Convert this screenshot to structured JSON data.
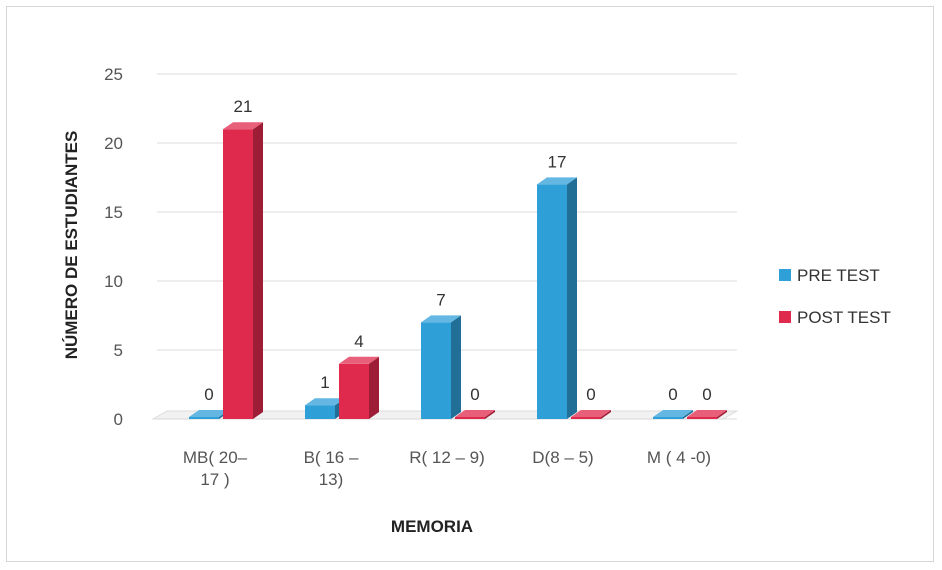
{
  "chart_data": {
    "type": "bar",
    "title": "",
    "xlabel": "MEMORIA",
    "ylabel": "NÚMERO DE ESTUDIANTES",
    "ylim": [
      0,
      25
    ],
    "yticks": [
      0,
      5,
      10,
      15,
      20,
      25
    ],
    "grid": true,
    "legend_position": "right",
    "categories": [
      [
        "MB( 20–",
        "17 )"
      ],
      [
        "B( 16 –",
        "13)"
      ],
      [
        "R( 12 – 9)"
      ],
      [
        "D(8 – 5)"
      ],
      [
        "M ( 4 -0)"
      ]
    ],
    "series": [
      {
        "name": "PRE TEST",
        "color": "#2f9fd8",
        "values": [
          0,
          1,
          7,
          17,
          0
        ]
      },
      {
        "name": "POST TEST",
        "color": "#e02a4d",
        "values": [
          21,
          4,
          0,
          0,
          0
        ]
      }
    ]
  }
}
